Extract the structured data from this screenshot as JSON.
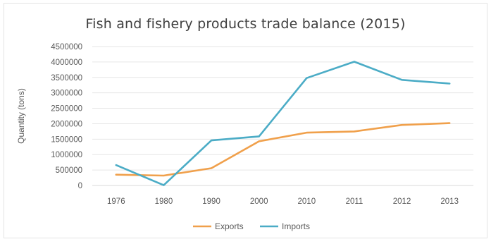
{
  "chart_data": {
    "type": "line",
    "title": "Fish and fishery products trade balance (2015)",
    "xlabel": "",
    "ylabel": "Quantity (tons)",
    "categories": [
      "1976",
      "1980",
      "1990",
      "2000",
      "2010",
      "2011",
      "2012",
      "2013"
    ],
    "ylim": [
      0,
      4500000
    ],
    "yticks": [
      0,
      500000,
      1000000,
      1500000,
      2000000,
      2500000,
      3000000,
      3500000,
      4000000,
      4500000
    ],
    "ytick_labels": [
      "0",
      "500000",
      "1000000",
      "1500000",
      "2000000",
      "2500000",
      "3000000",
      "3500000",
      "4000000",
      "4500000"
    ],
    "grid": true,
    "legend_position": "bottom",
    "series": [
      {
        "name": "Exports",
        "color": "#f0a04b",
        "values": [
          350000,
          320000,
          560000,
          1430000,
          1710000,
          1750000,
          1960000,
          2020000
        ]
      },
      {
        "name": "Imports",
        "color": "#4bacc6",
        "values": [
          660000,
          10000,
          1460000,
          1590000,
          3480000,
          4010000,
          3420000,
          3300000
        ]
      }
    ]
  }
}
